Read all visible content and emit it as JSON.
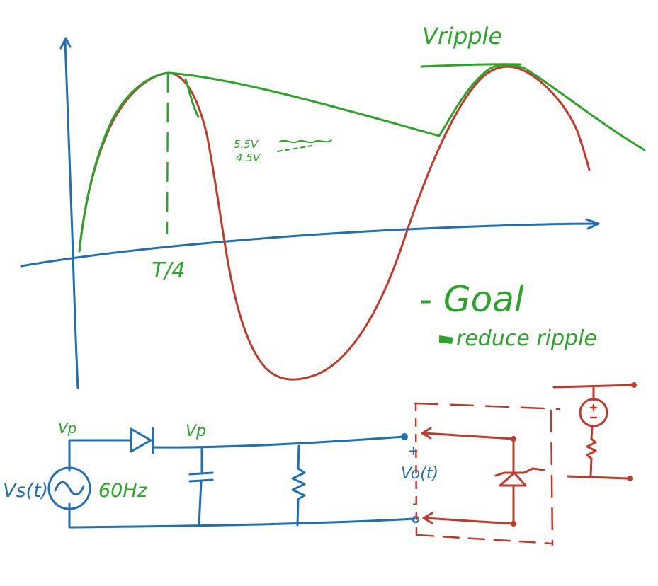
{
  "colors": {
    "blue": "#1f6fb4",
    "green": "#2aa52a",
    "red": "#c0392b",
    "background": "#ffffff"
  },
  "graph": {
    "period_label": "T/4",
    "ripple_label": "Vripple",
    "level_high": "5.5V",
    "level_low": "4.5V",
    "goal_title": "- Goal",
    "goal_item": "reduce ripple"
  },
  "circuit": {
    "source_label": "Vs(t)",
    "frequency_label": "60Hz",
    "node_left_label": "Vp",
    "node_right_label": "Vp",
    "output_label": "Vo(t)",
    "output_plus": "+",
    "output_minus": "-"
  }
}
